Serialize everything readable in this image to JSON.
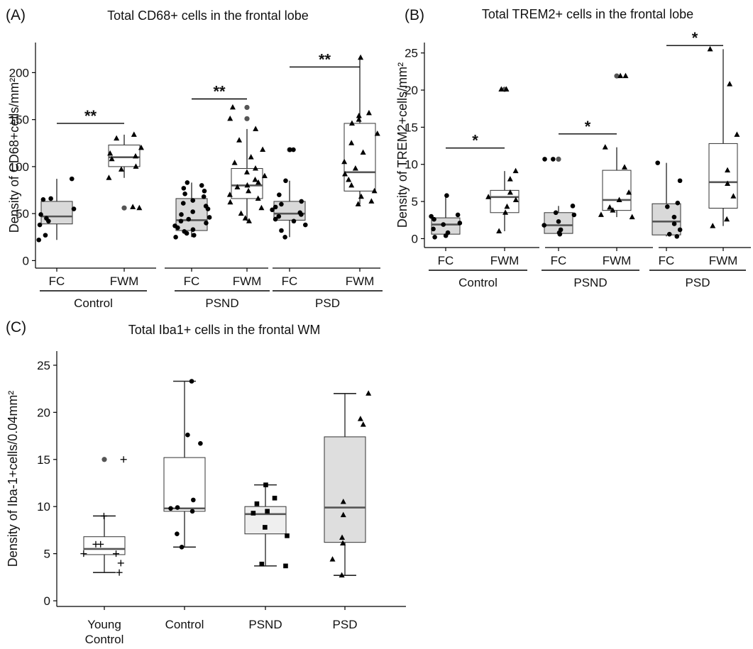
{
  "chart_data": [
    {
      "id": "A",
      "panel_label": "(A)",
      "type": "box",
      "title": "Total CD68+ cells in the frontal lobe",
      "ylabel": "Density of CD68+cells/mm²",
      "ylim": [
        -8,
        232
      ],
      "yticks": [
        0,
        50,
        100,
        150,
        200
      ],
      "groups": [
        {
          "label": "Control",
          "categories": [
            "FC",
            "FWM"
          ]
        },
        {
          "label": "PSND",
          "categories": [
            "FC",
            "FWM"
          ]
        },
        {
          "label": "PSD",
          "categories": [
            "FC",
            "FWM"
          ]
        }
      ],
      "boxes": [
        {
          "cat": "FC",
          "group": "Control",
          "fill": "#d9d9d9",
          "marker": "circle",
          "q1": 39,
          "median": 47,
          "q3": 63,
          "wlo": 22,
          "whi": 87,
          "outliers": [],
          "points": [
            22,
            27,
            38,
            42,
            45,
            49,
            55,
            65,
            66,
            87
          ]
        },
        {
          "cat": "FWM",
          "group": "Control",
          "fill": "#ffffff",
          "marker": "triangle",
          "q1": 100,
          "median": 110,
          "q3": 123,
          "wlo": 88,
          "whi": 134,
          "outliers": [
            56
          ],
          "points": [
            56,
            57,
            88,
            97,
            100,
            108,
            111,
            114,
            120,
            130,
            134
          ]
        },
        {
          "cat": "FC",
          "group": "PSND",
          "fill": "#d9d9d9",
          "marker": "circle",
          "q1": 32,
          "median": 43,
          "q3": 66,
          "wlo": 25,
          "whi": 83,
          "outliers": [],
          "points": [
            25,
            27,
            29,
            31,
            33,
            35,
            37,
            40,
            42,
            44,
            46,
            49,
            52,
            55,
            58,
            61,
            64,
            68,
            71,
            74,
            77,
            80,
            83
          ]
        },
        {
          "cat": "FWM",
          "group": "PSND",
          "fill": "#ffffff",
          "marker": "triangle",
          "q1": 66,
          "median": 80,
          "q3": 98,
          "wlo": 42,
          "whi": 140,
          "outliers": [
            151,
            163
          ],
          "points": [
            42,
            45,
            50,
            56,
            62,
            66,
            70,
            74,
            78,
            80,
            83,
            86,
            90,
            94,
            98,
            104,
            110,
            118,
            128,
            140,
            151,
            163
          ]
        },
        {
          "cat": "FC",
          "group": "PSD",
          "fill": "#d9d9d9",
          "marker": "circle",
          "q1": 43,
          "median": 50,
          "q3": 63,
          "wlo": 25,
          "whi": 85,
          "outliers": [
            118
          ],
          "points": [
            25,
            32,
            38,
            42,
            44,
            47,
            49,
            51,
            54,
            57,
            60,
            63,
            70,
            85,
            118,
            118
          ]
        },
        {
          "cat": "FWM",
          "group": "PSD",
          "fill": "#ffffff",
          "marker": "triangle",
          "q1": 74,
          "median": 94,
          "q3": 146,
          "wlo": 60,
          "whi": 216,
          "outliers": [],
          "points": [
            60,
            63,
            68,
            74,
            80,
            86,
            92,
            98,
            105,
            115,
            125,
            135,
            146,
            150,
            154,
            157,
            216
          ]
        }
      ],
      "significance": [
        {
          "group": "Control",
          "label": "**",
          "y": 146
        },
        {
          "group": "PSND",
          "label": "**",
          "y": 172
        },
        {
          "group": "PSD",
          "label": "**",
          "y": 206
        }
      ]
    },
    {
      "id": "B",
      "panel_label": "(B)",
      "type": "box",
      "title": "Total TREM2+ cells in the frontal lobe",
      "ylabel": "Density of TREM2+cells/mm²",
      "ylim": [
        -1.2,
        26.4
      ],
      "yticks": [
        0,
        5,
        10,
        15,
        20,
        25
      ],
      "groups": [
        {
          "label": "Control",
          "categories": [
            "FC",
            "FWM"
          ]
        },
        {
          "label": "PSND",
          "categories": [
            "FC",
            "FWM"
          ]
        },
        {
          "label": "PSD",
          "categories": [
            "FC",
            "FWM"
          ]
        }
      ],
      "boxes": [
        {
          "cat": "FC",
          "group": "Control",
          "fill": "#d9d9d9",
          "marker": "circle",
          "q1": 0.6,
          "median": 1.9,
          "q3": 2.8,
          "wlo": 0.2,
          "whi": 5.8,
          "outliers": [],
          "points": [
            0.2,
            0.4,
            0.8,
            1.3,
            1.9,
            2.1,
            2.6,
            3.0,
            3.2,
            5.8
          ]
        },
        {
          "cat": "FWM",
          "group": "Control",
          "fill": "#ffffff",
          "marker": "triangle",
          "q1": 3.5,
          "median": 5.6,
          "q3": 6.5,
          "wlo": 1.0,
          "whi": 9.1,
          "outliers": [
            20.1
          ],
          "points": [
            1.0,
            3.5,
            4.3,
            5.2,
            5.6,
            6.2,
            8.0,
            9.1,
            20.1,
            20.1
          ]
        },
        {
          "cat": "FC",
          "group": "PSND",
          "fill": "#d9d9d9",
          "marker": "circle",
          "q1": 0.7,
          "median": 1.8,
          "q3": 3.5,
          "wlo": 0.6,
          "whi": 4.4,
          "outliers": [
            10.7
          ],
          "points": [
            0.6,
            0.8,
            1.2,
            1.8,
            2.3,
            3.2,
            3.5,
            4.4,
            10.7,
            10.7
          ]
        },
        {
          "cat": "FWM",
          "group": "PSND",
          "fill": "#ffffff",
          "marker": "triangle",
          "q1": 3.8,
          "median": 5.2,
          "q3": 9.2,
          "wlo": 2.9,
          "whi": 12.3,
          "outliers": [
            21.9
          ],
          "points": [
            2.9,
            3.2,
            3.8,
            4.2,
            5.2,
            6.2,
            9.6,
            12.3,
            21.9,
            21.9
          ]
        },
        {
          "cat": "FC",
          "group": "PSD",
          "fill": "#d9d9d9",
          "marker": "circle",
          "q1": 0.5,
          "median": 2.3,
          "q3": 4.7,
          "wlo": 0.3,
          "whi": 10.2,
          "outliers": [],
          "points": [
            0.3,
            0.6,
            1.2,
            2.0,
            2.9,
            4.3,
            4.8,
            7.8,
            10.2
          ]
        },
        {
          "cat": "FWM",
          "group": "PSD",
          "fill": "#ffffff",
          "marker": "triangle",
          "q1": 4.1,
          "median": 7.6,
          "q3": 12.8,
          "wlo": 1.7,
          "whi": 25.5,
          "outliers": [],
          "points": [
            1.7,
            2.6,
            5.7,
            7.4,
            9.2,
            14.0,
            20.8,
            25.5
          ]
        }
      ],
      "significance": [
        {
          "group": "Control",
          "label": "*",
          "y": 12.2
        },
        {
          "group": "PSND",
          "label": "*",
          "y": 14.1
        },
        {
          "group": "PSD",
          "label": "*",
          "y": 26.0
        }
      ]
    },
    {
      "id": "C",
      "panel_label": "(C)",
      "type": "box",
      "title": "Total Iba1+ cells  in the frontal WM",
      "ylabel": "Density of Iba-1+cells/0.04mm²",
      "ylim": [
        -0.6,
        26.5
      ],
      "yticks": [
        0,
        5,
        10,
        15,
        20,
        25
      ],
      "categories": [
        "Young Control",
        "Control",
        "PSND",
        "PSD"
      ],
      "boxes": [
        {
          "cat": "Young Control",
          "fill": "#ffffff",
          "marker": "plus",
          "q1": 4.9,
          "median": 5.5,
          "q3": 6.8,
          "wlo": 3.0,
          "whi": 9.0,
          "outliers": [
            15.0
          ],
          "points": [
            3.0,
            4.0,
            5.0,
            5.0,
            6.0,
            6.0,
            9.0,
            15.0
          ]
        },
        {
          "cat": "Control",
          "fill": "#ffffff",
          "marker": "circle",
          "q1": 9.5,
          "median": 9.8,
          "q3": 15.2,
          "wlo": 5.7,
          "whi": 23.3,
          "outliers": [],
          "points": [
            5.7,
            7.1,
            9.5,
            9.8,
            9.9,
            10.7,
            16.7,
            17.6,
            23.3
          ]
        },
        {
          "cat": "PSND",
          "fill": "#efefef",
          "marker": "square",
          "q1": 7.1,
          "median": 9.2,
          "q3": 10.0,
          "wlo": 3.7,
          "whi": 12.3,
          "outliers": [],
          "points": [
            3.7,
            3.9,
            6.9,
            7.8,
            9.3,
            9.5,
            10.3,
            10.9,
            12.3
          ]
        },
        {
          "cat": "PSD",
          "fill": "#dedede",
          "marker": "triangle",
          "q1": 6.2,
          "median": 9.9,
          "q3": 17.4,
          "wlo": 2.7,
          "whi": 22.0,
          "outliers": [],
          "points": [
            2.7,
            4.4,
            6.1,
            6.7,
            9.1,
            10.5,
            18.7,
            19.3,
            22.0
          ]
        }
      ],
      "significance": []
    }
  ]
}
